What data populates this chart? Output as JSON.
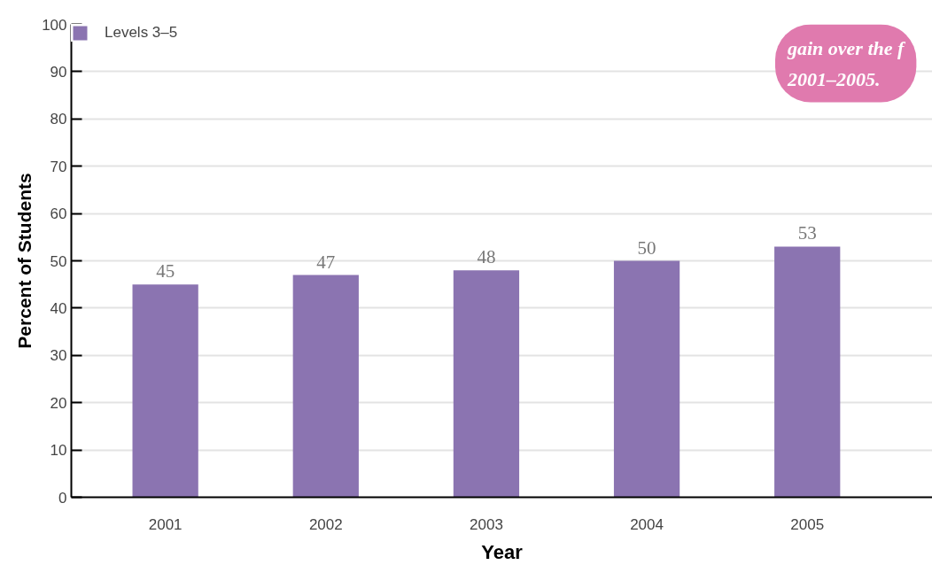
{
  "chart_data": {
    "type": "bar",
    "categories": [
      "2001",
      "2002",
      "2003",
      "2004",
      "2005"
    ],
    "series": [
      {
        "name": "Levels 3–5",
        "color": "#8b74b1",
        "values": [
          45,
          47,
          48,
          50,
          53
        ]
      }
    ],
    "xlabel": "Year",
    "ylabel": "Percent of Students",
    "ylim": [
      0,
      100
    ],
    "yticks": [
      0,
      10,
      20,
      30,
      40,
      50,
      60,
      70,
      80,
      90,
      100
    ],
    "grid": "y",
    "legend": "top left",
    "data_labels": true,
    "annotations": [
      "gain over the f\n2001–2005."
    ]
  }
}
